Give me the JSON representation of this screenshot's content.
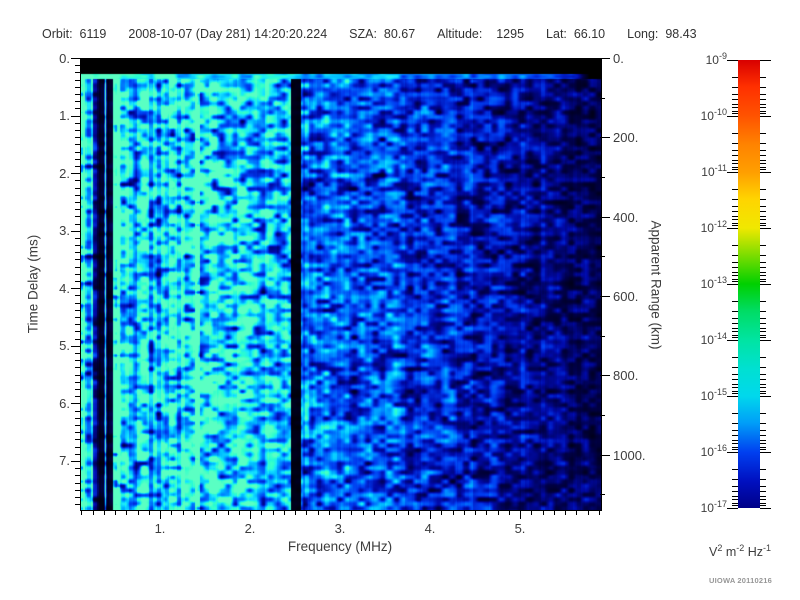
{
  "header": {
    "items": [
      "Orbit:  6119",
      "2008-10-07 (Day 281) 14:20:20.224",
      "SZA:  80.67",
      "Altitude:    1295",
      "Lat:  66.10",
      "Long:  98.43"
    ]
  },
  "axes": {
    "x": {
      "label": "Frequency (MHz)",
      "tick_labels": [
        "1.",
        "2.",
        "3.",
        "4.",
        "5."
      ]
    },
    "y_left": {
      "label": "Time Delay (ms)",
      "tick_labels": [
        "0.",
        "1.",
        "2.",
        "3.",
        "4.",
        "5.",
        "6.",
        "7."
      ]
    },
    "y_right": {
      "label": "Apparent Range (km)",
      "tick_labels": [
        "0.",
        "200.",
        "400.",
        "600.",
        "800.",
        "1000."
      ]
    }
  },
  "colorbar": {
    "base": "10",
    "exponents": [
      "-9",
      "-10",
      "-11",
      "-12",
      "-13",
      "-14",
      "-15",
      "-16",
      "-17"
    ],
    "unit_parts": [
      {
        "t": "V",
        "e": "2"
      },
      {
        "t": " m",
        "e": "-2"
      },
      {
        "t": " Hz",
        "e": "-1"
      }
    ]
  },
  "watermark": "UIOWA 20110216",
  "chart_data": {
    "type": "heatmap",
    "title": "Radar sounder ionogram (spectrogram)",
    "xlabel": "Frequency (MHz)",
    "ylabel_left": "Time Delay (ms)",
    "ylabel_right": "Apparent Range (km)",
    "x_range_mhz": [
      0.1,
      5.9
    ],
    "y_range_ms": [
      0.0,
      7.85
    ],
    "y_range_km": [
      0,
      1140
    ],
    "x_major_ticks_mhz": [
      1,
      2,
      3,
      4,
      5
    ],
    "y_left_major_ticks_ms": [
      0,
      1,
      2,
      3,
      4,
      5,
      6,
      7
    ],
    "y_right_major_ticks_km": [
      0,
      200,
      400,
      600,
      800,
      1000
    ],
    "color_scale": {
      "unit": "V^2 m^-2 Hz^-1",
      "min": 1e-17,
      "max": 1e-09,
      "scale": "log",
      "palette": "rainbow (red=high, dark blue=low)"
    },
    "features": [
      {
        "name": "transmitter blank (black band)",
        "time_delay_ms": [
          0.0,
          0.27
        ]
      },
      {
        "name": "bright first-return line across all frequencies",
        "time_delay_ms": [
          0.27,
          0.38
        ],
        "intensity": "cyan-green fading to blue at high frequency"
      },
      {
        "name": "electron plasma oscillation striations (alternating bright/dark columns)",
        "freq_mhz": [
          0.1,
          0.5
        ]
      },
      {
        "name": "dark attenuation columns",
        "freq_mhz": [
          0.28,
          0.45
        ]
      },
      {
        "name": "bright narrow interference line",
        "freq_mhz": 1.4
      },
      {
        "name": "black attenuation band",
        "freq_mhz": [
          2.32,
          2.45
        ]
      },
      {
        "name": "diffuse blue noise, intensity decreasing with frequency, near-black beyond 4.5 MHz",
        "freq_mhz": [
          0.1,
          5.9
        ],
        "intensity_range": "1e-16 to 1e-15"
      }
    ]
  }
}
